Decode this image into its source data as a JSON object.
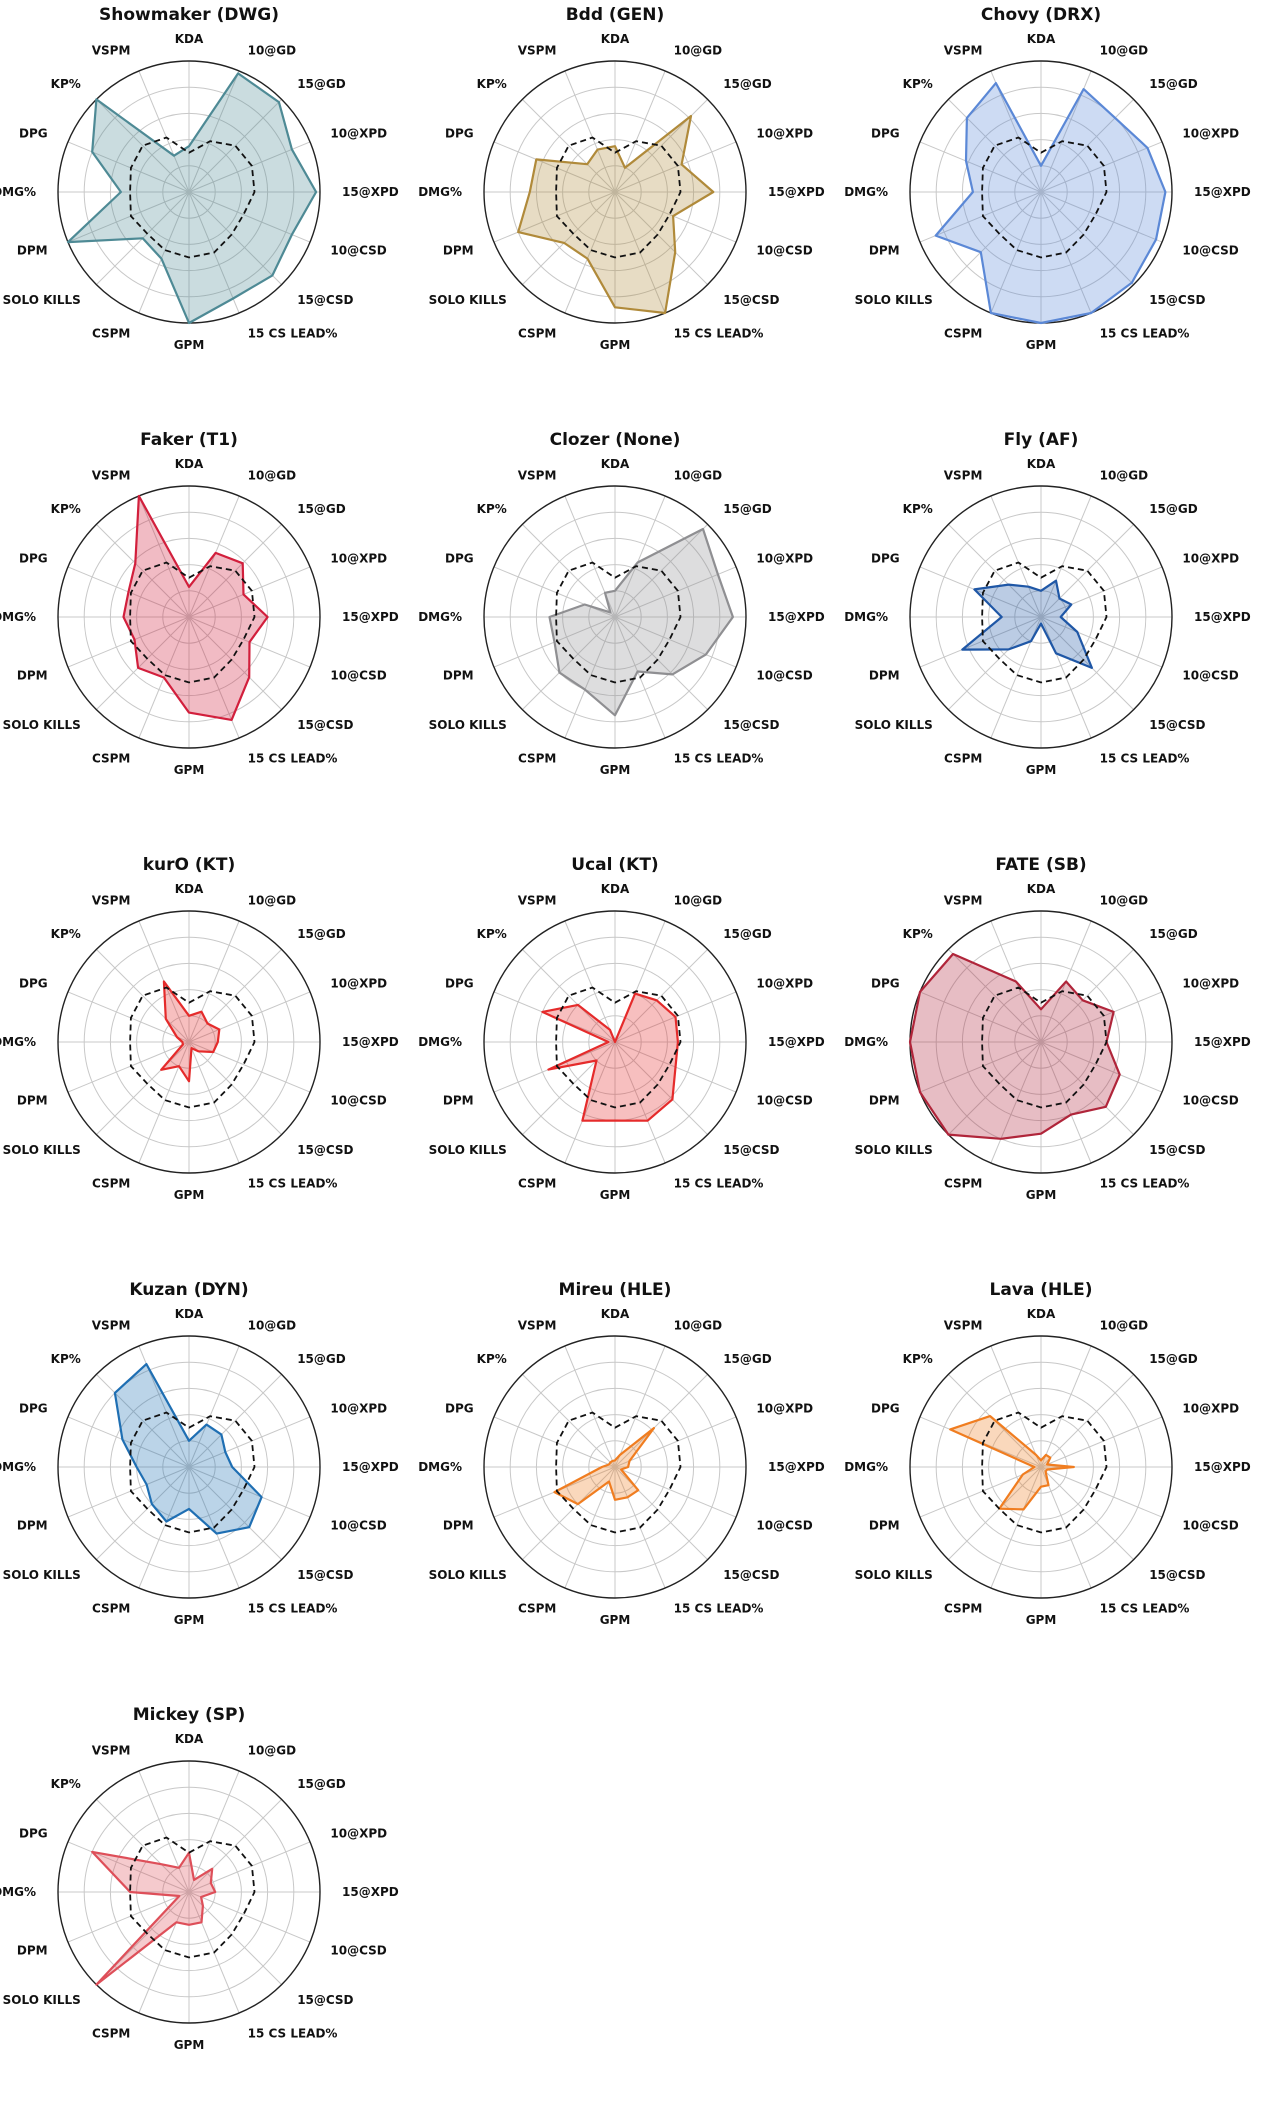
{
  "chart_data": {
    "type": "radar",
    "axes": [
      "KDA",
      "10@GD",
      "15@GD",
      "10@XPD",
      "15@XPD",
      "10@CSD",
      "15@CSD",
      "15 CS LEAD%",
      "GPM",
      "CSPM",
      "SOLO KILLS",
      "DPM",
      "DMG%",
      "DPG",
      "KP%",
      "VSPM"
    ],
    "rlim": [
      0,
      1
    ],
    "grid": true,
    "baseline": {
      "style": "dashed",
      "color": "#111111",
      "values": [
        0.3,
        0.42,
        0.5,
        0.52,
        0.5,
        0.45,
        0.46,
        0.5,
        0.5,
        0.48,
        0.45,
        0.48,
        0.45,
        0.48,
        0.5,
        0.45
      ]
    },
    "panels": [
      {
        "title": "Showmaker (DWG)",
        "color": "#4e8a95",
        "values": [
          0.35,
          0.98,
          0.97,
          0.85,
          0.97,
          0.85,
          0.9,
          0.88,
          1.0,
          0.55,
          0.5,
          1.0,
          0.52,
          0.8,
          1.0,
          0.3
        ]
      },
      {
        "title": "Bdd (GEN)",
        "color": "#b08a3a",
        "values": [
          0.35,
          0.2,
          0.82,
          0.55,
          0.75,
          0.48,
          0.65,
          1.0,
          0.88,
          0.55,
          0.55,
          0.8,
          0.65,
          0.65,
          0.3,
          0.35
        ]
      },
      {
        "title": "Chovy (DRX)",
        "color": "#5b88d6",
        "values": [
          0.2,
          0.85,
          0.8,
          0.88,
          0.95,
          0.95,
          0.98,
          1.0,
          1.0,
          1.0,
          0.65,
          0.87,
          0.52,
          0.62,
          0.8,
          0.9
        ]
      },
      {
        "title": "Faker (T1)",
        "color": "#d21f3c",
        "values": [
          0.23,
          0.53,
          0.58,
          0.45,
          0.6,
          0.5,
          0.65,
          0.85,
          0.73,
          0.5,
          0.55,
          0.45,
          0.5,
          0.5,
          0.58,
          1.0
        ]
      },
      {
        "title": "Clozer (None)",
        "color": "#8f8f92",
        "values": [
          0.2,
          0.45,
          0.95,
          0.85,
          0.9,
          0.75,
          0.62,
          0.45,
          0.75,
          0.6,
          0.6,
          0.5,
          0.5,
          0.25,
          0.05,
          0.2
        ]
      },
      {
        "title": "Fly (AF)",
        "color": "#1f57a6",
        "values": [
          0.2,
          0.3,
          0.2,
          0.25,
          0.15,
          0.3,
          0.55,
          0.3,
          0.05,
          0.2,
          0.35,
          0.65,
          0.3,
          0.55,
          0.35,
          0.25
        ]
      },
      {
        "title": "kurO (KT)",
        "color": "#e52b2b",
        "values": [
          0.2,
          0.25,
          0.2,
          0.25,
          0.22,
          0.2,
          0.1,
          0.05,
          0.3,
          0.2,
          0.3,
          0.05,
          0.05,
          0.1,
          0.25,
          0.5
        ]
      },
      {
        "title": "Ucal (KT)",
        "color": "#e52b2b",
        "values": [
          0.0,
          0.4,
          0.45,
          0.5,
          0.48,
          0.5,
          0.62,
          0.65,
          0.6,
          0.65,
          0.2,
          0.55,
          0.05,
          0.6,
          0.4,
          0.1
        ]
      },
      {
        "title": "FATE (SB)",
        "color": "#b0253a",
        "values": [
          0.25,
          0.5,
          0.45,
          0.6,
          0.5,
          0.65,
          0.7,
          0.6,
          0.7,
          0.8,
          1.0,
          1.0,
          1.0,
          1.0,
          0.95,
          0.5
        ]
      },
      {
        "title": "Kuzan (DYN)",
        "color": "#1f6fb3",
        "values": [
          0.2,
          0.35,
          0.35,
          0.3,
          0.33,
          0.6,
          0.65,
          0.55,
          0.32,
          0.45,
          0.4,
          0.35,
          0.4,
          0.55,
          0.8,
          0.85
        ]
      },
      {
        "title": "Mireu (HLE)",
        "color": "#f07d20",
        "values": [
          0.05,
          0.1,
          0.42,
          0.12,
          0.1,
          0.05,
          0.25,
          0.25,
          0.25,
          0.12,
          0.4,
          0.5,
          0.1,
          0.05,
          0.05,
          0.05
        ]
      },
      {
        "title": "Lava (HLE)",
        "color": "#f07d20",
        "values": [
          0.05,
          0.1,
          0.1,
          0.05,
          0.25,
          0.05,
          0.05,
          0.15,
          0.15,
          0.35,
          0.45,
          0.15,
          0.05,
          0.75,
          0.55,
          0.1
        ]
      },
      {
        "title": "Mickey (SP)",
        "color": "#de4f59",
        "values": [
          0.3,
          0.1,
          0.25,
          0.18,
          0.2,
          0.1,
          0.15,
          0.25,
          0.25,
          0.25,
          1.0,
          0.08,
          0.45,
          0.8,
          0.3,
          0.2
        ]
      }
    ]
  }
}
